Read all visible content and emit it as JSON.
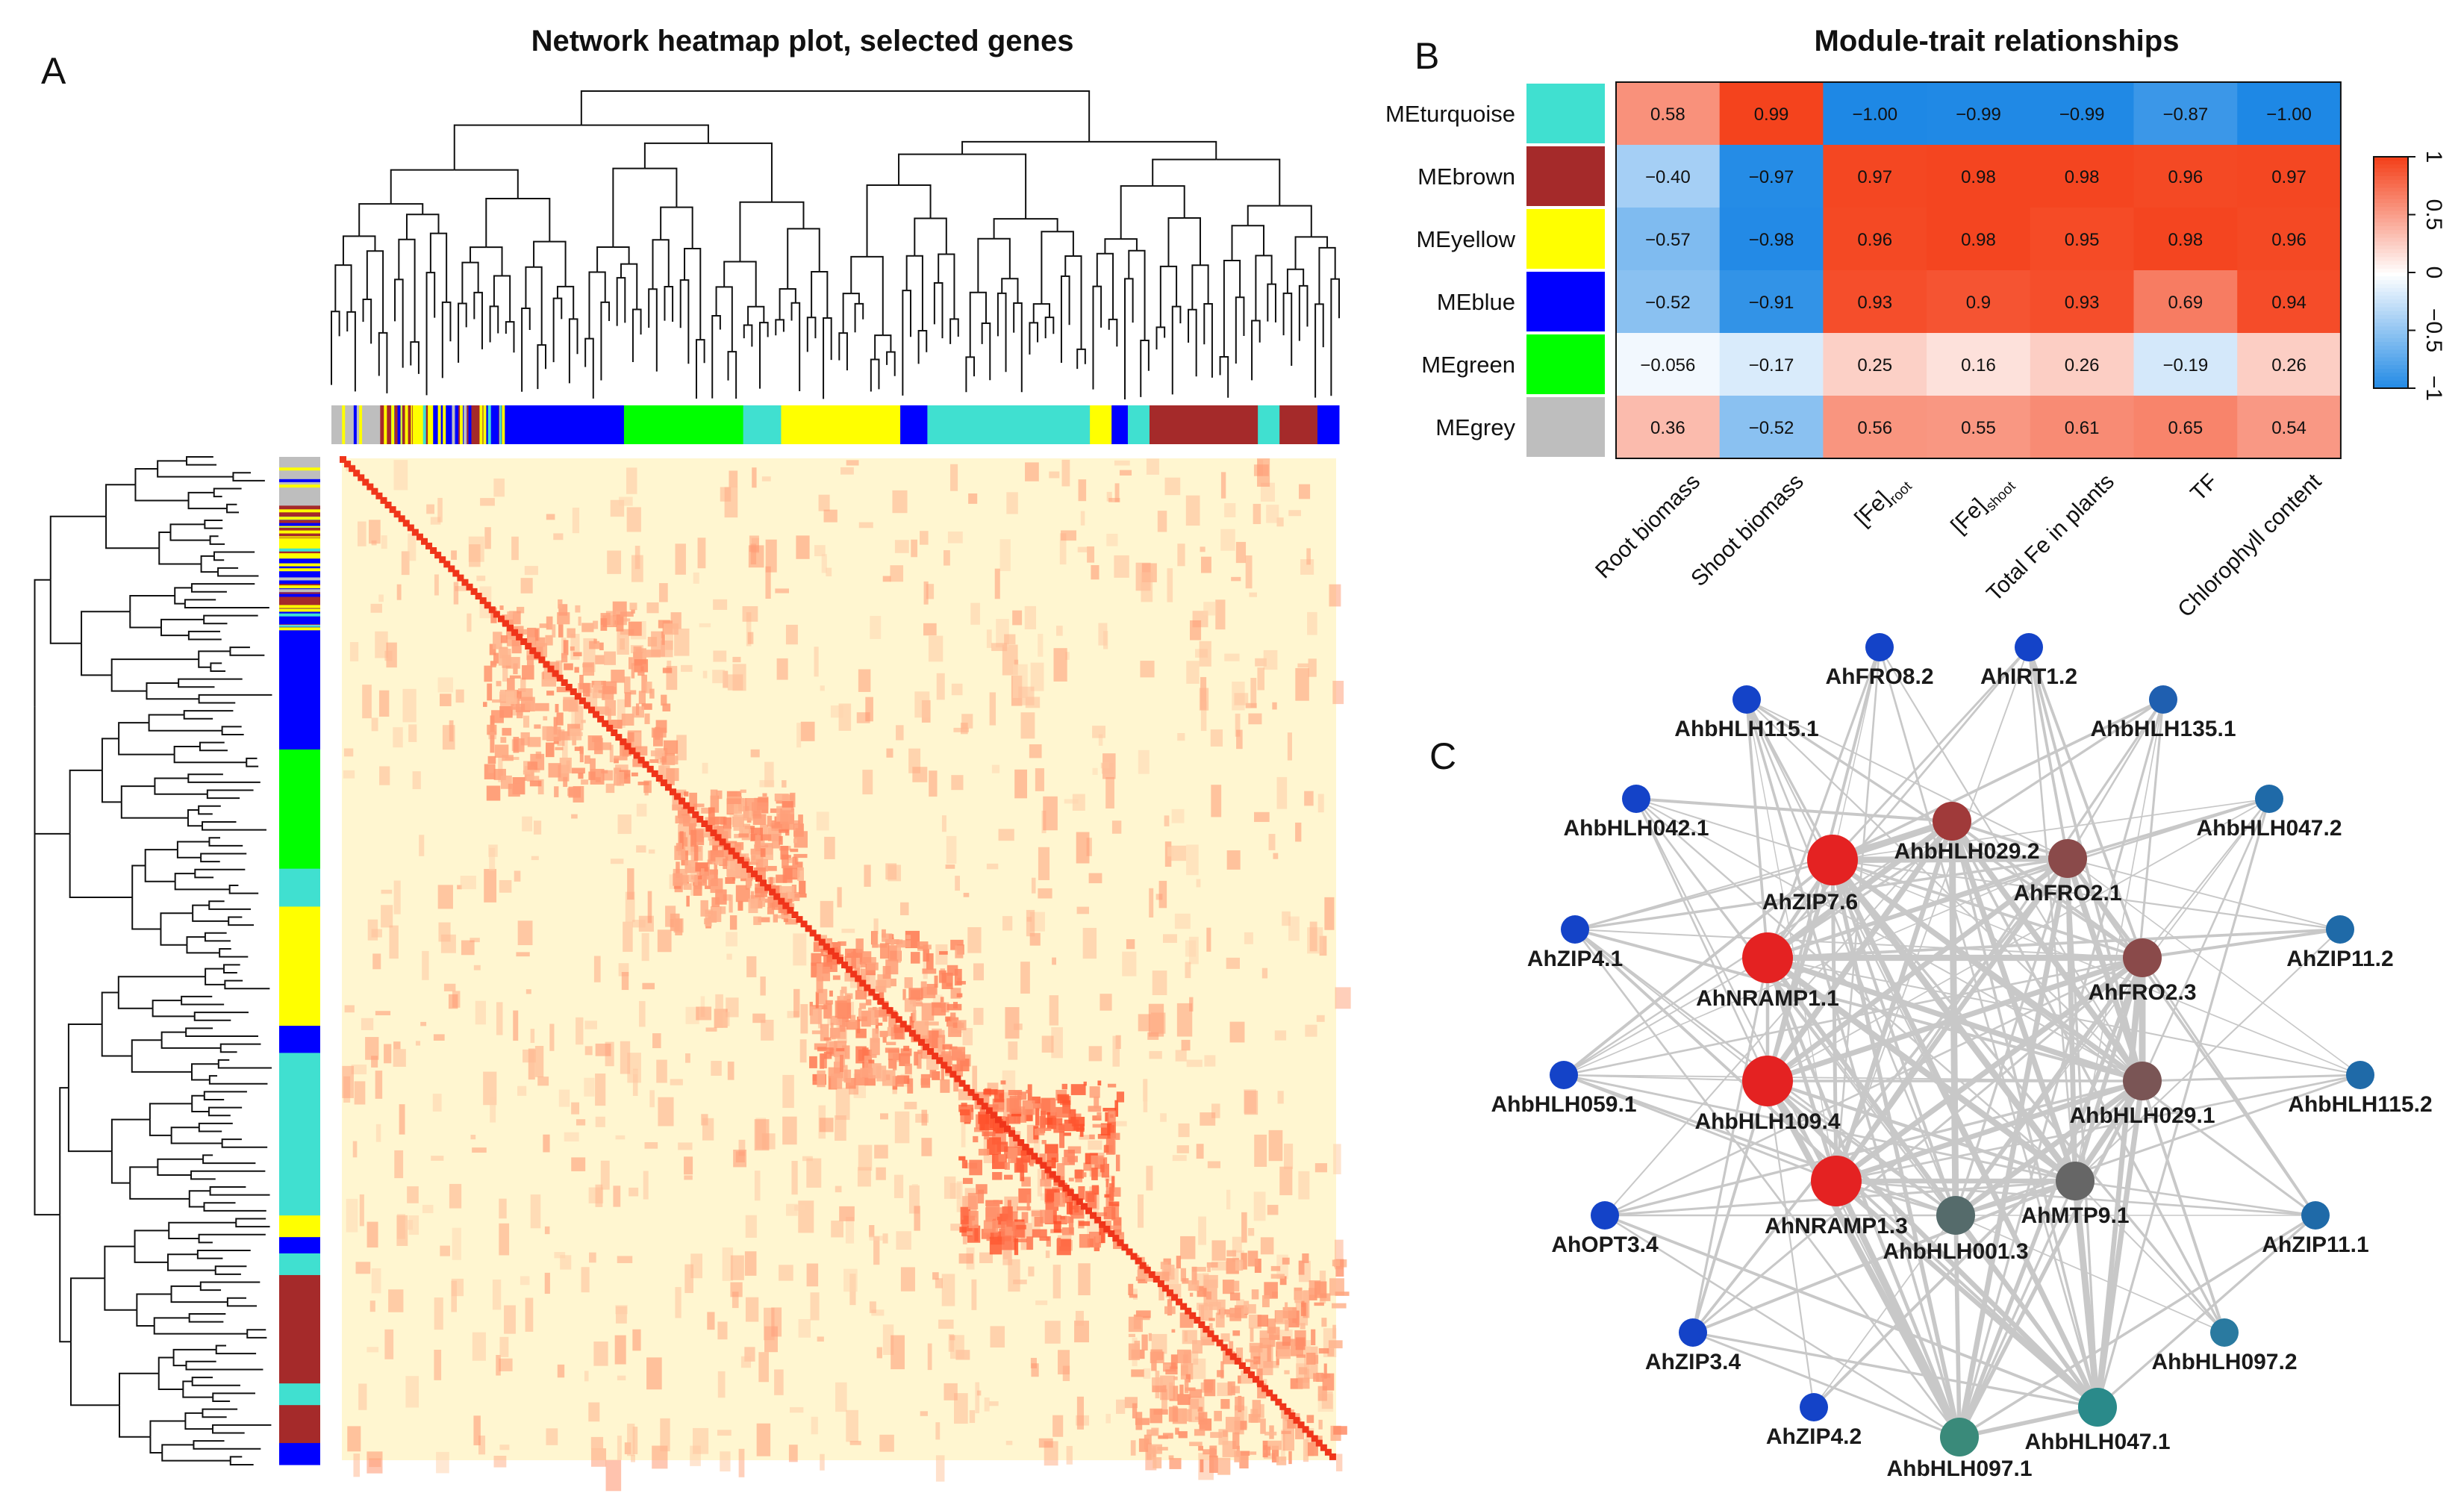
{
  "panels": {
    "a": {
      "letter": "A",
      "title": "Network heatmap plot, selected genes"
    },
    "b": {
      "letter": "B",
      "title": "Module-trait relationships"
    },
    "c": {
      "letter": "C"
    }
  },
  "heatmap_a": {
    "module_order": [
      "grey",
      "brown",
      "yellow",
      "blue",
      "brown",
      "blue",
      "green",
      "turquoise",
      "yellow",
      "blue",
      "turquoise",
      "yellow",
      "blue",
      "turquoise",
      "brown",
      "turquoise",
      "brown",
      "blue"
    ],
    "module_weights": [
      0.045,
      0.03,
      0.02,
      0.03,
      0.015,
      0.13,
      0.11,
      0.035,
      0.11,
      0.025,
      0.15,
      0.02,
      0.015,
      0.02,
      0.1,
      0.02,
      0.035,
      0.02
    ],
    "module_colors": {
      "grey": "#bebebe",
      "brown": "#a52a2a",
      "yellow": "#ffff00",
      "blue": "#0000ff",
      "green": "#00ff00",
      "turquoise": "#40e0d0"
    },
    "hot_blocks": [
      {
        "start": 0.14,
        "end": 0.33,
        "level": 0.55
      },
      {
        "start": 0.33,
        "end": 0.46,
        "level": 0.6
      },
      {
        "start": 0.47,
        "end": 0.62,
        "level": 0.65
      },
      {
        "start": 0.62,
        "end": 0.78,
        "level": 0.85
      },
      {
        "start": 0.79,
        "end": 1.0,
        "level": 0.55
      }
    ]
  },
  "chart_data": {
    "type": "heatmap",
    "title": "Module-trait relationships",
    "rows": [
      "MEturquoise",
      "MEbrown",
      "MEyellow",
      "MEblue",
      "MEgreen",
      "MEgrey"
    ],
    "row_colors": [
      "#40e0d0",
      "#a52a2a",
      "#ffff00",
      "#0000ff",
      "#00ff00",
      "#bebebe"
    ],
    "columns": [
      "Root biomass",
      "Shoot biomass",
      "[Fe]root",
      "[Fe]shoot",
      "Total Fe in plants",
      "TF",
      "Chlorophyll content"
    ],
    "column_labels": [
      {
        "main": "Root biomass",
        "sub": ""
      },
      {
        "main": "Shoot biomass",
        "sub": ""
      },
      {
        "main": "[Fe]",
        "sub": "root"
      },
      {
        "main": "[Fe]",
        "sub": "shoot"
      },
      {
        "main": "Total Fe in plants",
        "sub": ""
      },
      {
        "main": "TF",
        "sub": ""
      },
      {
        "main": "Chlorophyll content",
        "sub": ""
      }
    ],
    "values": [
      [
        0.58,
        0.99,
        -1.0,
        -0.99,
        -0.99,
        -0.87,
        -1.0
      ],
      [
        -0.4,
        -0.97,
        0.97,
        0.98,
        0.98,
        0.96,
        0.97
      ],
      [
        -0.57,
        -0.98,
        0.96,
        0.98,
        0.95,
        0.98,
        0.96
      ],
      [
        -0.52,
        -0.91,
        0.93,
        0.9,
        0.93,
        0.69,
        0.94
      ],
      [
        -0.056,
        -0.17,
        0.25,
        0.16,
        0.26,
        -0.19,
        0.26
      ],
      [
        0.36,
        -0.52,
        0.56,
        0.55,
        0.61,
        0.65,
        0.54
      ]
    ],
    "value_labels": [
      [
        "0.58",
        "0.99",
        "−1.00",
        "−0.99",
        "−0.99",
        "−0.87",
        "−1.00"
      ],
      [
        "−0.40",
        "−0.97",
        "0.97",
        "0.98",
        "0.98",
        "0.96",
        "0.97"
      ],
      [
        "−0.57",
        "−0.98",
        "0.96",
        "0.98",
        "0.95",
        "0.98",
        "0.96"
      ],
      [
        "−0.52",
        "−0.91",
        "0.93",
        "0.9",
        "0.93",
        "0.69",
        "0.94"
      ],
      [
        "−0.056",
        "−0.17",
        "0.25",
        "0.16",
        "0.26",
        "−0.19",
        "0.26"
      ],
      [
        "0.36",
        "−0.52",
        "0.56",
        "0.55",
        "0.61",
        "0.65",
        "0.54"
      ]
    ],
    "color_scale": {
      "min": -1,
      "max": 1,
      "low": "#1e88e5",
      "mid": "#ffffff",
      "high": "#f4411b"
    },
    "legend_ticks": [
      {
        "value": 1,
        "label": "1"
      },
      {
        "value": 0.5,
        "label": "0.5"
      },
      {
        "value": 0,
        "label": "0"
      },
      {
        "value": -0.5,
        "label": "−0.5"
      },
      {
        "value": -1,
        "label": "−1"
      }
    ]
  },
  "network_c": {
    "nodes": [
      {
        "id": "AhFRO8.2",
        "color": "#1443c8",
        "size": "small"
      },
      {
        "id": "AhIRT1.2",
        "color": "#1443c8",
        "size": "small"
      },
      {
        "id": "AhbHLH115.1",
        "color": "#1443c8",
        "size": "small"
      },
      {
        "id": "AhbHLH135.1",
        "color": "#1f5fb0",
        "size": "small"
      },
      {
        "id": "AhbHLH042.1",
        "color": "#1443c8",
        "size": "small"
      },
      {
        "id": "AhbHLH047.2",
        "color": "#1f6aa8",
        "size": "small"
      },
      {
        "id": "AhbHLH029.2",
        "color": "#a03a3a",
        "size": "medium"
      },
      {
        "id": "AhZIP7.6",
        "color": "#e42222",
        "size": "large"
      },
      {
        "id": "AhFRO2.1",
        "color": "#8a4a4a",
        "size": "medium"
      },
      {
        "id": "AhZIP4.1",
        "color": "#1443c8",
        "size": "small"
      },
      {
        "id": "AhZIP11.2",
        "color": "#1f6aa8",
        "size": "small"
      },
      {
        "id": "AhNRAMP1.1",
        "color": "#e42222",
        "size": "large"
      },
      {
        "id": "AhFRO2.3",
        "color": "#8a4a4a",
        "size": "medium"
      },
      {
        "id": "AhbHLH059.1",
        "color": "#1443c8",
        "size": "small"
      },
      {
        "id": "AhbHLH115.2",
        "color": "#1f6aa8",
        "size": "small"
      },
      {
        "id": "AhbHLH109.4",
        "color": "#e42222",
        "size": "large"
      },
      {
        "id": "AhbHLH029.1",
        "color": "#7a5555",
        "size": "medium"
      },
      {
        "id": "AhNRAMP1.3",
        "color": "#e42222",
        "size": "large"
      },
      {
        "id": "AhMTP9.1",
        "color": "#666666",
        "size": "medium"
      },
      {
        "id": "AhOPT3.4",
        "color": "#1443c8",
        "size": "small"
      },
      {
        "id": "AhbHLH001.3",
        "color": "#556b6b",
        "size": "medium"
      },
      {
        "id": "AhZIP11.1",
        "color": "#1f6aa8",
        "size": "small"
      },
      {
        "id": "AhZIP3.4",
        "color": "#1443c8",
        "size": "small"
      },
      {
        "id": "AhbHLH097.2",
        "color": "#2a7aa0",
        "size": "small"
      },
      {
        "id": "AhZIP4.2",
        "color": "#1443c8",
        "size": "small"
      },
      {
        "id": "AhbHLH047.1",
        "color": "#2a8a8a",
        "size": "medium"
      },
      {
        "id": "AhbHLH097.1",
        "color": "#3a8a7a",
        "size": "medium"
      }
    ],
    "hubs": [
      "AhZIP7.6",
      "AhNRAMP1.1",
      "AhbHLH109.4",
      "AhNRAMP1.3",
      "AhbHLH029.2",
      "AhFRO2.1",
      "AhFRO2.3",
      "AhbHLH029.1",
      "AhMTP9.1",
      "AhbHLH001.3",
      "AhbHLH047.1",
      "AhbHLH097.1"
    ],
    "edge_color": "#c8c8c8"
  }
}
